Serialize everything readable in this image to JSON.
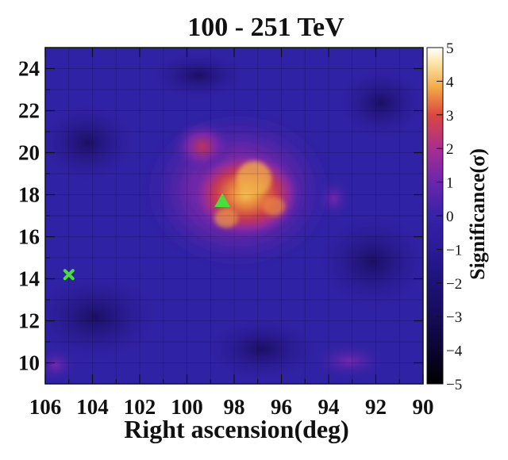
{
  "chart_data": {
    "type": "heatmap",
    "title": "100 - 251 TeV",
    "xlabel": "Right ascension(deg)",
    "ylabel": "",
    "xlim": [
      106,
      90
    ],
    "ylim": [
      9,
      25
    ],
    "x_ticks": [
      "106",
      "104",
      "102",
      "100",
      "98",
      "96",
      "94",
      "92",
      "90"
    ],
    "y_ticks": [
      "10",
      "12",
      "14",
      "16",
      "18",
      "20",
      "22",
      "24"
    ],
    "grid": true,
    "colorbar": {
      "label": "Significance(σ)",
      "range": [
        -5,
        5
      ],
      "ticks": [
        "5",
        "4",
        "3",
        "2",
        "1",
        "0",
        "−1",
        "−2",
        "−3",
        "−4",
        "−5"
      ],
      "colors": [
        "#000000",
        "#0b0430",
        "#1a1070",
        "#2a1f96",
        "#3a22a8",
        "#6a25b0",
        "#a02f96",
        "#d2404e",
        "#f0a040",
        "#fbe8a8",
        "#ffffff"
      ]
    },
    "emission_region": {
      "center_ra": 97.5,
      "center_dec": 18.0,
      "peak_significance": 4.2
    },
    "markers": [
      {
        "type": "triangle",
        "ra": 98.5,
        "dec": 17.7,
        "color": "#4ade3a"
      },
      {
        "type": "cross",
        "ra": 105.0,
        "dec": 14.2,
        "color": "#4ade3a"
      }
    ]
  }
}
